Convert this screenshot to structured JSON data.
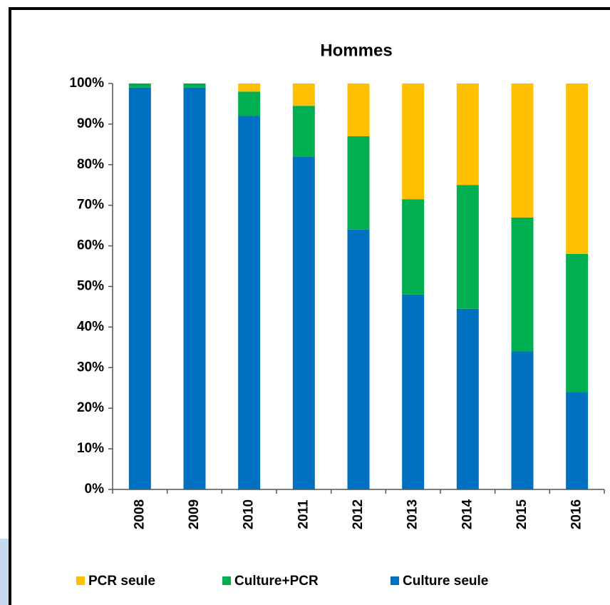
{
  "chart_data": {
    "type": "stacked_bar",
    "title": "Hommes",
    "categories": [
      "2008",
      "2009",
      "2010",
      "2011",
      "2012",
      "2013",
      "2014",
      "2015",
      "2016"
    ],
    "series": [
      {
        "name": "Culture seule",
        "color": "#0070c0",
        "values": [
          99,
          99,
          92,
          82,
          64,
          48,
          44.5,
          34,
          24
        ]
      },
      {
        "name": "Culture+PCR",
        "color": "#00b050",
        "values": [
          1,
          1,
          6,
          12.5,
          23,
          23.5,
          30.5,
          33,
          34
        ]
      },
      {
        "name": "PCR seule",
        "color": "#ffc000",
        "values": [
          0,
          0,
          2,
          5.5,
          13,
          28.5,
          25,
          33,
          42
        ]
      }
    ],
    "ylim": [
      0,
      100
    ],
    "yticks": [
      {
        "value": 0,
        "label": "0%"
      },
      {
        "value": 10,
        "label": "10%"
      },
      {
        "value": 20,
        "label": "20%"
      },
      {
        "value": 30,
        "label": "30%"
      },
      {
        "value": 40,
        "label": "40%"
      },
      {
        "value": 50,
        "label": "50%"
      },
      {
        "value": 60,
        "label": "60%"
      },
      {
        "value": 70,
        "label": "70%"
      },
      {
        "value": 80,
        "label": "80%"
      },
      {
        "value": 90,
        "label": "90%"
      },
      {
        "value": 100,
        "label": "100%"
      }
    ],
    "grid": false,
    "legend": "bottom"
  }
}
